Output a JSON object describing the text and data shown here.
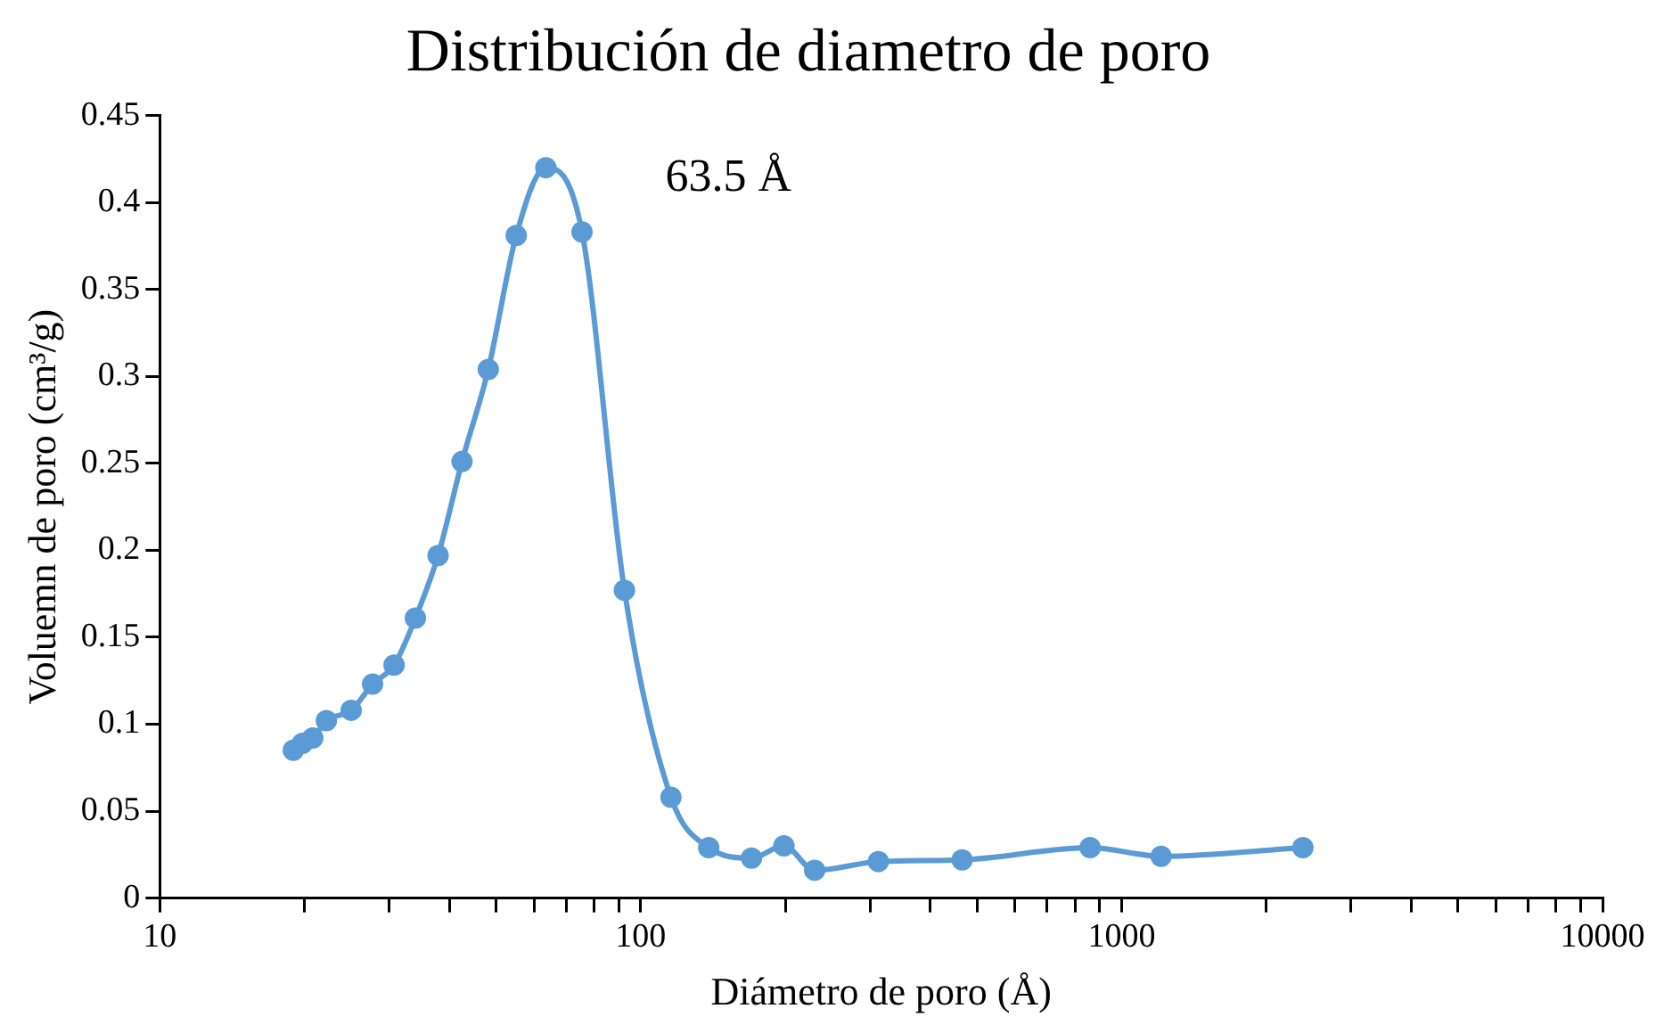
{
  "chart_data": {
    "type": "line",
    "title": "Distribución de diametro de poro",
    "xlabel": "Diámetro de poro (Å)",
    "ylabel": "Voluemn de poro (cm³/g)",
    "log": "x",
    "marker": "circle",
    "x": [
      18.95,
      19.8,
      20.8,
      22.2,
      25,
      27.7,
      30.7,
      34,
      37.9,
      42.5,
      48.2,
      55.1,
      63.5,
      75.5,
      92.5,
      115.6,
      138.5,
      170,
      198.5,
      230,
      312,
      466,
      860,
      1208,
      2382
    ],
    "series": [
      {
        "color": "#5b9bd5",
        "values": [
          0.085,
          0.089,
          0.092,
          0.102,
          0.108,
          0.123,
          0.134,
          0.161,
          0.197,
          0.251,
          0.304,
          0.381,
          0.42,
          0.383,
          0.177,
          0.058,
          0.029,
          0.023,
          0.03,
          0.016,
          0.021,
          0.022,
          0.029,
          0.024,
          0.029
        ]
      }
    ],
    "xlim": [
      10,
      10000
    ],
    "xticks": [
      10,
      {
        "value": 20,
        "label": null
      },
      {
        "value": 30,
        "label": null
      },
      {
        "value": 40,
        "label": null
      },
      {
        "value": 50,
        "label": null
      },
      {
        "value": 60,
        "label": null
      },
      {
        "value": 70,
        "label": null
      },
      {
        "value": 80,
        "label": null
      },
      {
        "value": 90,
        "label": null
      },
      100,
      {
        "value": 200,
        "label": null
      },
      {
        "value": 300,
        "label": null
      },
      {
        "value": 400,
        "label": null
      },
      {
        "value": 500,
        "label": null
      },
      {
        "value": 600,
        "label": null
      },
      {
        "value": 700,
        "label": null
      },
      {
        "value": 800,
        "label": null
      },
      {
        "value": 900,
        "label": null
      },
      1000,
      {
        "value": 2000,
        "label": null
      },
      {
        "value": 3000,
        "label": null
      },
      {
        "value": 4000,
        "label": null
      },
      {
        "value": 5000,
        "label": null
      },
      {
        "value": 6000,
        "label": null
      },
      {
        "value": 7000,
        "label": null
      },
      {
        "value": 8000,
        "label": null
      },
      {
        "value": 9000,
        "label": null
      },
      10000
    ],
    "ylim": [
      0,
      0.45
    ],
    "yticks": [
      0,
      0.05,
      0.1,
      0.15,
      0.2,
      0.25,
      0.3,
      0.35,
      0.4,
      0.45
    ],
    "annotations": [
      {
        "text": "63.5 Å",
        "x": 63.5,
        "y": 0.42
      }
    ]
  }
}
